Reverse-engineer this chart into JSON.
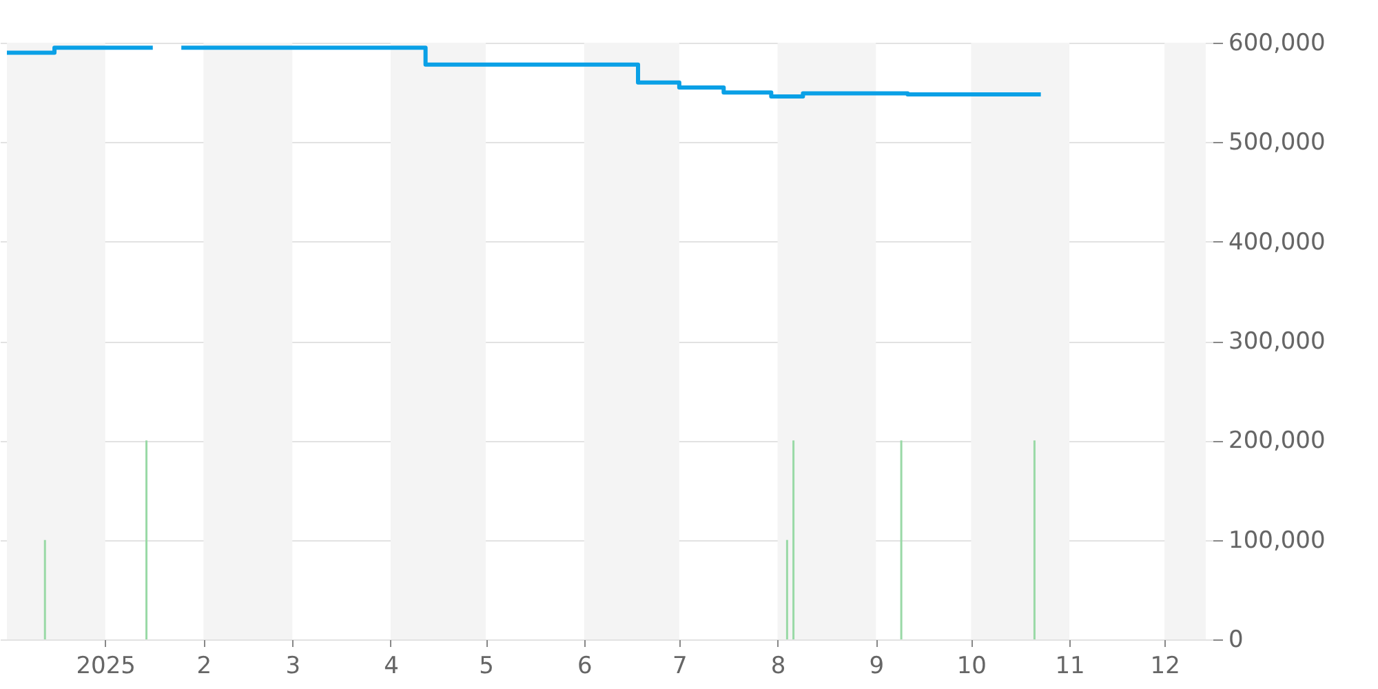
{
  "chart_data": {
    "type": "step",
    "xlim": [
      "2024-12-01",
      "2025-12-14"
    ],
    "xticks": [
      {
        "value": "2025-01-01",
        "label": "2025"
      },
      {
        "value": "2025-02-01",
        "label": "2"
      },
      {
        "value": "2025-03-01",
        "label": "3"
      },
      {
        "value": "2025-04-01",
        "label": "4"
      },
      {
        "value": "2025-05-01",
        "label": "5"
      },
      {
        "value": "2025-06-01",
        "label": "6"
      },
      {
        "value": "2025-07-01",
        "label": "7"
      },
      {
        "value": "2025-08-01",
        "label": "8"
      },
      {
        "value": "2025-09-01",
        "label": "9"
      },
      {
        "value": "2025-10-01",
        "label": "10"
      },
      {
        "value": "2025-11-01",
        "label": "11"
      },
      {
        "value": "2025-12-01",
        "label": "12"
      }
    ],
    "ylim": [
      0,
      600000
    ],
    "yticks": [
      {
        "value": 0,
        "label": "0"
      },
      {
        "value": 100000,
        "label": "100,000"
      },
      {
        "value": 200000,
        "label": "200,000"
      },
      {
        "value": 300000,
        "label": "300,000"
      },
      {
        "value": 400000,
        "label": "400,000"
      },
      {
        "value": 500000,
        "label": "500,000"
      },
      {
        "value": 600000,
        "label": "600,000"
      }
    ],
    "grid": "y",
    "series": [
      {
        "type": "bar",
        "color": "#99d9a6",
        "x": [
          "2024-12-13",
          "2025-01-14",
          "2025-08-04",
          "2025-08-06",
          "2025-09-09",
          "2025-10-21"
        ],
        "values": [
          100000,
          200000,
          100000,
          200000,
          200000,
          200000
        ]
      },
      {
        "color": "#0aa0e6",
        "x": [
          "2024-12-01",
          "2024-12-16",
          "2025-01-16",
          "2025-01-20",
          "2025-01-25",
          "2025-04-12",
          "2025-06-18",
          "2025-07-01",
          "2025-07-15",
          "2025-07-30",
          "2025-08-09",
          "2025-09-11",
          "2025-10-23"
        ],
        "values": [
          590000,
          595000,
          595000,
          null,
          595000,
          578000,
          560000,
          555000,
          550000,
          546000,
          549000,
          548000,
          548000
        ]
      }
    ],
    "bands": [
      {
        "axis": "x",
        "from": "2024-12-01",
        "to": "2025-01-01",
        "color": "#f4f4f4"
      },
      {
        "axis": "x",
        "from": "2025-02-01",
        "to": "2025-03-01",
        "color": "#f4f4f4"
      },
      {
        "axis": "x",
        "from": "2025-04-01",
        "to": "2025-05-01",
        "color": "#f4f4f4"
      },
      {
        "axis": "x",
        "from": "2025-06-01",
        "to": "2025-07-01",
        "color": "#f4f4f4"
      },
      {
        "axis": "x",
        "from": "2025-08-01",
        "to": "2025-09-01",
        "color": "#f4f4f4"
      },
      {
        "axis": "x",
        "from": "2025-10-01",
        "to": "2025-11-01",
        "color": "#f4f4f4"
      },
      {
        "axis": "x",
        "from": "2025-12-01",
        "to": "2025-12-14",
        "color": "#f4f4f4"
      }
    ]
  }
}
